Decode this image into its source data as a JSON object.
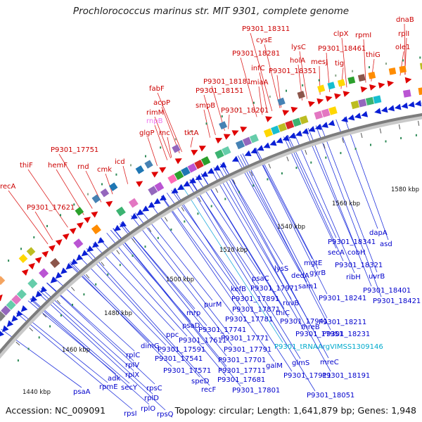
{
  "title": "Prochlorococcus marinus str. MIT 9301, complete genome",
  "accession": "Accession: NC_009091",
  "summary": "Topology: circular; Length: 1,641,879 bp; Genes: 1,948",
  "colors": {
    "forward_label": "#cc0000",
    "reverse_label": "#0000cc",
    "rna_label": "#ee77ee",
    "trna_label": "#00aacc",
    "backbone": "#8a8a8a"
  },
  "kbp_ticks": [
    "1440 kbp",
    "1460 kbp",
    "1480 kbp",
    "1500 kbp",
    "1520 kbp",
    "1540 kbp",
    "1560 kbp",
    "1580 kbp"
  ],
  "forward_labels": [
    "recA",
    "thiF",
    "P9301_17621",
    "hemF",
    "P9301_17751",
    "rnd",
    "cmk",
    "icd",
    "glgP",
    "rnc",
    "rnpB",
    "rimM",
    "acpP",
    "fabF",
    "tktA",
    "smpB",
    "P9301_18151",
    "P9301_18181",
    "P9301_18201",
    "miaA",
    "infC",
    "P9301_18281",
    "cysE",
    "P9301_18311",
    "holA",
    "lysC",
    "P9301_18351",
    "mesJ",
    "tig",
    "clpX",
    "P9301_18461",
    "thiG",
    "rpmI",
    "rplI",
    "dnaB",
    "ole1"
  ],
  "reverse_labels": [
    "psaA",
    "rpsI",
    "rpmE",
    "adk",
    "secY",
    "rplO",
    "rpsQ",
    "rplD",
    "rpsC",
    "rplX",
    "rplV",
    "rplC",
    "dimG",
    "P9301_17541",
    "P9301_17571",
    "P9301_17591",
    "ppc",
    "psaD",
    "P9301_17611",
    "speD",
    "recF",
    "P9301_17681",
    "P9301_17701",
    "mrp",
    "P9301_17741",
    "P9301_17711",
    "P9301_17781",
    "purM",
    "P9301_17771",
    "P9301_17801",
    "kefB",
    "P9301_17791",
    "P9301_17871",
    "P9301_17891",
    "psaC",
    "P9301_17971",
    "galM",
    "glmS",
    "P9301_17911",
    "lysS",
    "thiC",
    "P9301_17941",
    "ruvB",
    "P9301_17951",
    "dedA",
    "sam1",
    "mgtE",
    "gyrB",
    "secA",
    "cobH",
    "P9301_18341",
    "P9301_18321",
    "mreB",
    "P9301_18241",
    "mreC",
    "P9301_18211",
    "P9301_18231",
    "P9301_18191",
    "P9301_18051",
    "ribH",
    "uvrB",
    "dapA",
    "asd",
    "P9301_18401",
    "P9301_18421"
  ],
  "rna_labels": [
    "P9301_tRNAArgVIMSS1309146"
  ]
}
